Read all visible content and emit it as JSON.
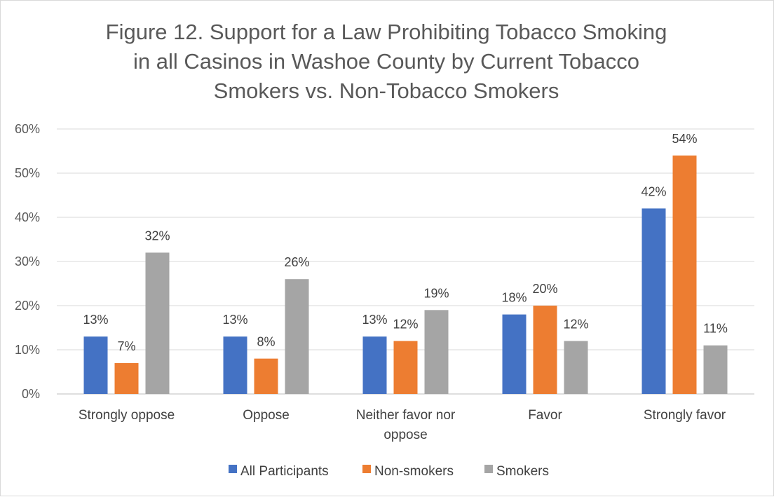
{
  "chart_data": {
    "type": "bar",
    "title_lines": [
      "Figure 12. Support for a Law Prohibiting Tobacco Smoking",
      "in all Casinos in Washoe County by Current Tobacco",
      "Smokers vs. Non-Tobacco Smokers"
    ],
    "categories": [
      [
        "Strongly oppose"
      ],
      [
        "Oppose"
      ],
      [
        "Neither favor nor",
        "oppose"
      ],
      [
        "Favor"
      ],
      [
        "Strongly favor"
      ]
    ],
    "series": [
      {
        "name": "All Participants",
        "color": "#4472C4",
        "values": [
          13,
          13,
          13,
          18,
          42
        ],
        "labels": [
          "13%",
          "13%",
          "13%",
          "18%",
          "42%"
        ]
      },
      {
        "name": "Non-smokers",
        "color": "#ED7D31",
        "values": [
          7,
          8,
          12,
          20,
          54
        ],
        "labels": [
          "7%",
          "8%",
          "12%",
          "20%",
          "54%"
        ]
      },
      {
        "name": "Smokers",
        "color": "#A5A5A5",
        "values": [
          32,
          26,
          19,
          12,
          11
        ],
        "labels": [
          "32%",
          "26%",
          "19%",
          "12%",
          "11%"
        ]
      }
    ],
    "yticks": [
      "0%",
      "10%",
      "20%",
      "30%",
      "40%",
      "50%",
      "60%"
    ],
    "ylim": [
      0,
      60
    ],
    "grid": true,
    "legend_position": "bottom",
    "xlabel": "",
    "ylabel": ""
  }
}
